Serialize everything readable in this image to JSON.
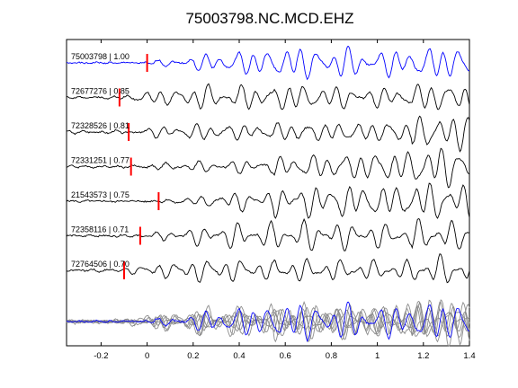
{
  "chart_data": {
    "type": "line",
    "title": "75003798.NC.MCD.EHZ",
    "xlabel": "",
    "ylabel": "",
    "xlim": [
      -0.35,
      1.4
    ],
    "x_ticks": [
      -0.2,
      0,
      0.2,
      0.4,
      0.6,
      0.8,
      1,
      1.2,
      1.4
    ],
    "x_tick_labels": [
      "-0.2",
      "0",
      "0.2",
      "0.4",
      "0.6",
      "0.8",
      "1",
      "1.2",
      "1.4"
    ],
    "grid": false,
    "colors": {
      "reference": "#0000ff",
      "trace": "#000000",
      "overlay": "#888888",
      "pick": "#ff0000",
      "axes": "#000000"
    },
    "traces": [
      {
        "label": "75003798 | 1.00",
        "pick_time": 0.0,
        "color": "#0000ff",
        "seed": 1
      },
      {
        "label": "72677276 | 0.85",
        "pick_time": -0.12,
        "color": "#000000",
        "seed": 2
      },
      {
        "label": "72328526 | 0.81",
        "pick_time": -0.08,
        "color": "#000000",
        "seed": 3
      },
      {
        "label": "72331251 | 0.77",
        "pick_time": -0.07,
        "color": "#000000",
        "seed": 4
      },
      {
        "label": "21543573 | 0.75",
        "pick_time": 0.05,
        "color": "#000000",
        "seed": 5
      },
      {
        "label": "72358116 | 0.71",
        "pick_time": -0.03,
        "color": "#000000",
        "seed": 6
      },
      {
        "label": "72764506 | 0.70",
        "pick_time": -0.1,
        "color": "#000000",
        "seed": 7
      }
    ],
    "overlay": {
      "description": "stack",
      "reference_color": "#0000ff",
      "others_color": "#888888"
    }
  }
}
